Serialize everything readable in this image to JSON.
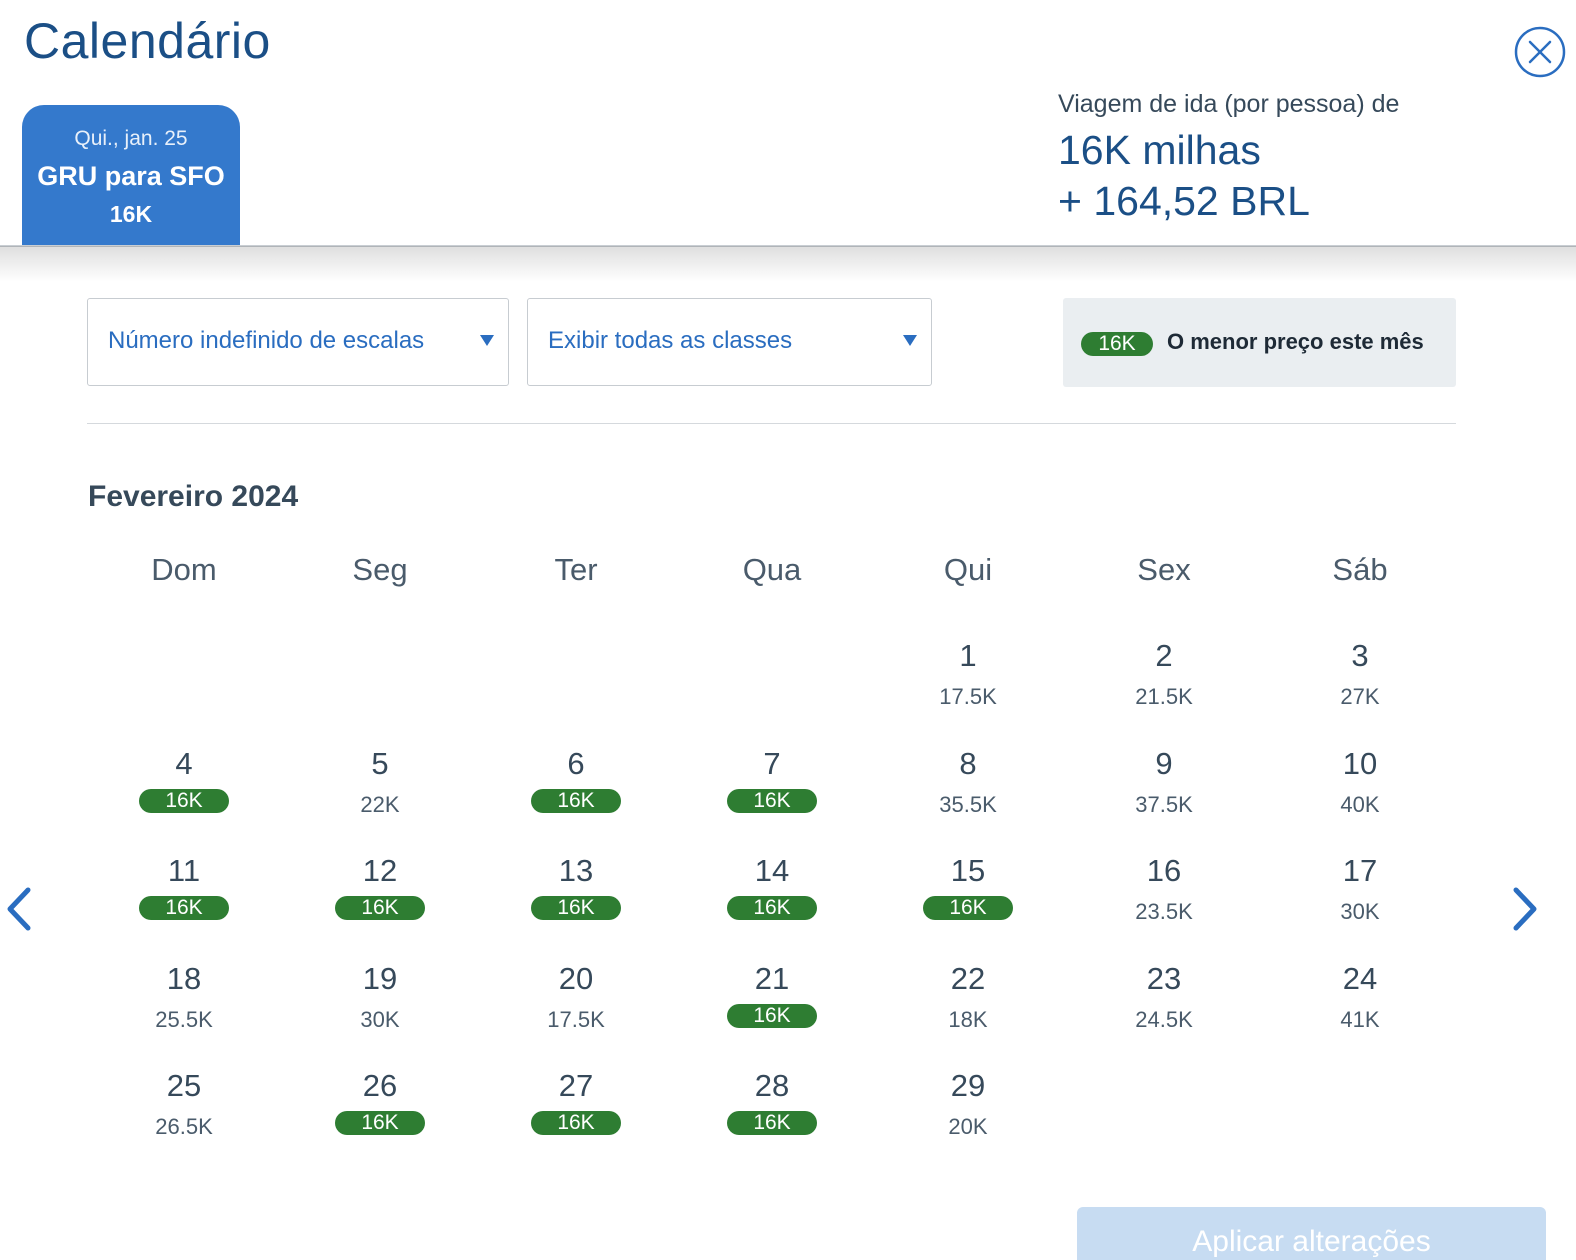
{
  "header": {
    "title": "Calendário",
    "trip_tab": {
      "date": "Qui., jan. 25",
      "route": "GRU para SFO",
      "price": "16K"
    },
    "fare_summary": {
      "label": "Viagem de ida (por pessoa) de",
      "miles": "16K milhas",
      "cash": "+ 164,52 BRL"
    }
  },
  "filters": {
    "stops": "Número indefinido de escalas",
    "classes": "Exibir todas as classes"
  },
  "legend": {
    "badge": "16K",
    "text": "O menor preço este mês"
  },
  "calendar": {
    "month": "Fevereiro 2024",
    "weekdays": [
      "Dom",
      "Seg",
      "Ter",
      "Qua",
      "Qui",
      "Sex",
      "Sáb"
    ],
    "days": [
      {
        "day": "1",
        "price": "17.5K",
        "lowest": false
      },
      {
        "day": "2",
        "price": "21.5K",
        "lowest": false
      },
      {
        "day": "3",
        "price": "27K",
        "lowest": false
      },
      {
        "day": "4",
        "price": "16K",
        "lowest": true
      },
      {
        "day": "5",
        "price": "22K",
        "lowest": false
      },
      {
        "day": "6",
        "price": "16K",
        "lowest": true
      },
      {
        "day": "7",
        "price": "16K",
        "lowest": true
      },
      {
        "day": "8",
        "price": "35.5K",
        "lowest": false
      },
      {
        "day": "9",
        "price": "37.5K",
        "lowest": false
      },
      {
        "day": "10",
        "price": "40K",
        "lowest": false
      },
      {
        "day": "11",
        "price": "16K",
        "lowest": true
      },
      {
        "day": "12",
        "price": "16K",
        "lowest": true
      },
      {
        "day": "13",
        "price": "16K",
        "lowest": true
      },
      {
        "day": "14",
        "price": "16K",
        "lowest": true
      },
      {
        "day": "15",
        "price": "16K",
        "lowest": true
      },
      {
        "day": "16",
        "price": "23.5K",
        "lowest": false
      },
      {
        "day": "17",
        "price": "30K",
        "lowest": false
      },
      {
        "day": "18",
        "price": "25.5K",
        "lowest": false
      },
      {
        "day": "19",
        "price": "30K",
        "lowest": false
      },
      {
        "day": "20",
        "price": "17.5K",
        "lowest": false
      },
      {
        "day": "21",
        "price": "16K",
        "lowest": true
      },
      {
        "day": "22",
        "price": "18K",
        "lowest": false
      },
      {
        "day": "23",
        "price": "24.5K",
        "lowest": false
      },
      {
        "day": "24",
        "price": "41K",
        "lowest": false
      },
      {
        "day": "25",
        "price": "26.5K",
        "lowest": false
      },
      {
        "day": "26",
        "price": "16K",
        "lowest": true
      },
      {
        "day": "27",
        "price": "16K",
        "lowest": true
      },
      {
        "day": "28",
        "price": "16K",
        "lowest": true
      },
      {
        "day": "29",
        "price": "20K",
        "lowest": false
      }
    ]
  },
  "footer": {
    "apply_label": "Aplicar alterações"
  },
  "colors": {
    "brand_blue": "#1b4f86",
    "accent_blue": "#3479cc",
    "lowest_green": "#2e7d32"
  },
  "icons": {
    "close": "close-circle-icon",
    "prev": "chevron-left-icon",
    "next": "chevron-right-icon"
  }
}
